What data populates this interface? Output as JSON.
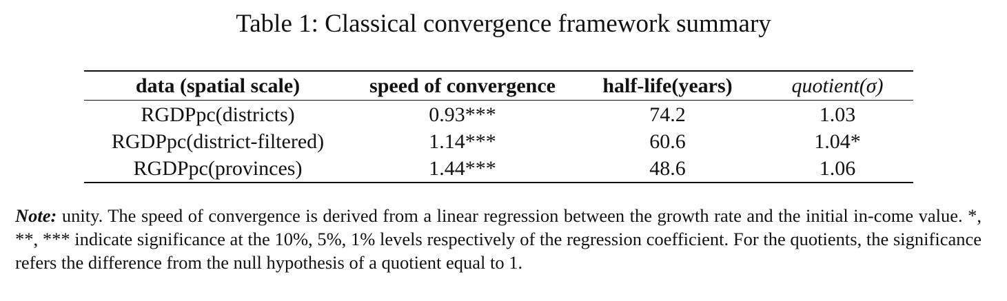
{
  "caption": "Table 1: Classical convergence framework summary",
  "table": {
    "headers": [
      "data (spatial scale)",
      "speed of convergence",
      "half-life(years)",
      "quotient(σ)"
    ],
    "rows": [
      [
        "RGDPpc(districts)",
        "0.93***",
        "74.2",
        "1.03"
      ],
      [
        "RGDPpc(district-filtered)",
        "1.14***",
        "60.6",
        "1.04*"
      ],
      [
        "RGDPpc(provinces)",
        "1.44***",
        "48.6",
        "1.06"
      ]
    ]
  },
  "note": {
    "label": "Note:",
    "text": "unity. The speed of convergence is derived from a linear regression between the growth rate and the initial in-come value. *, **, *** indicate significance at the 10%, 5%, 1% levels respectively of the regression coefficient. For the quotients, the significance refers the difference from the null hypothesis of a quotient equal to 1."
  }
}
